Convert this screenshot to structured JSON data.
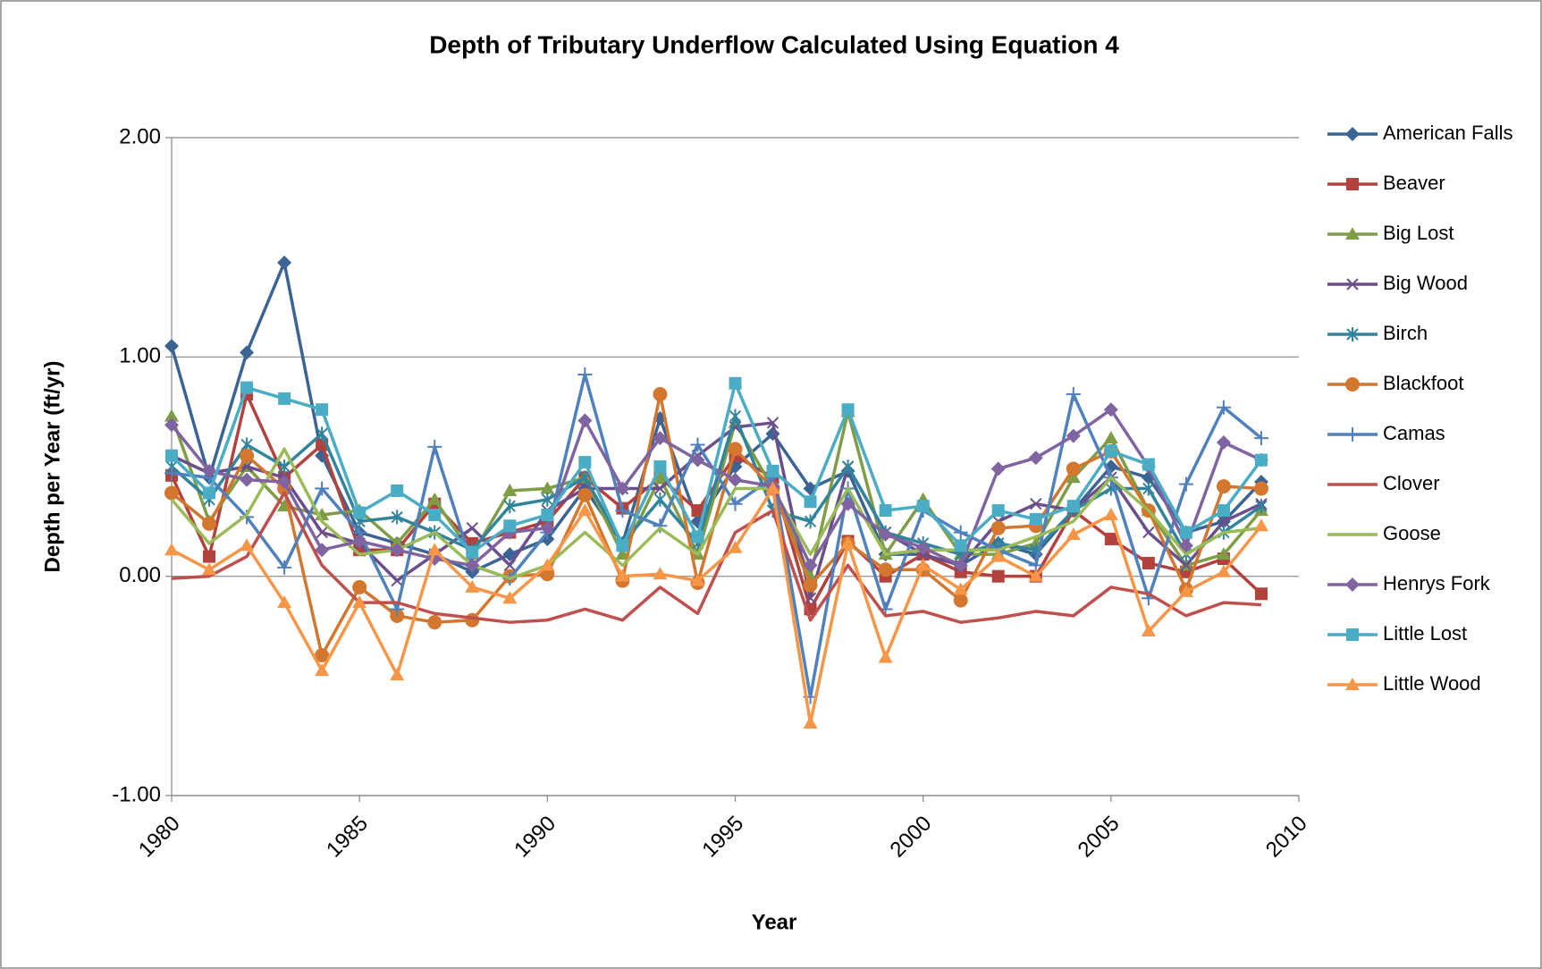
{
  "chart_data": {
    "type": "line",
    "title": "Depth of Tributary Underflow Calculated Using Equation 4",
    "x_label": "Year",
    "y_label": "Depth per Year (ft/yr)",
    "x": [
      1980,
      1981,
      1982,
      1983,
      1984,
      1985,
      1986,
      1987,
      1988,
      1989,
      1990,
      1991,
      1992,
      1993,
      1994,
      1995,
      1996,
      1997,
      1998,
      1999,
      2000,
      2001,
      2002,
      2003,
      2004,
      2005,
      2006,
      2007,
      2008,
      2009
    ],
    "xlim": [
      1980,
      2010
    ],
    "xticks": [
      1980,
      1985,
      1990,
      1995,
      2000,
      2005,
      2010
    ],
    "ylim": [
      -1,
      2
    ],
    "yticks": [
      {
        "value": -1,
        "label": "-1.00"
      },
      {
        "value": 0,
        "label": "0.00"
      },
      {
        "value": 1,
        "label": "1.00"
      },
      {
        "value": 2,
        "label": "2.00"
      }
    ],
    "grid": true,
    "legend": "right",
    "series": [
      {
        "name": "American Falls",
        "color": "#3b6495",
        "marker": "diamond",
        "values": [
          1.05,
          0.45,
          1.02,
          1.43,
          0.55,
          0.2,
          0.15,
          0.1,
          0.02,
          0.1,
          0.17,
          0.4,
          0.15,
          0.72,
          0.25,
          0.5,
          0.65,
          0.4,
          0.48,
          0.1,
          0.1,
          0.05,
          0.15,
          0.1,
          0.3,
          0.5,
          0.45,
          0.2,
          0.25,
          0.43
        ]
      },
      {
        "name": "Beaver",
        "color": "#b3413e",
        "marker": "square",
        "values": [
          0.46,
          0.09,
          0.83,
          0.45,
          0.6,
          0.12,
          0.12,
          0.33,
          0.15,
          0.2,
          0.25,
          0.45,
          0.31,
          0.45,
          0.3,
          0.55,
          0.45,
          -0.15,
          0.16,
          0.0,
          0.1,
          0.02,
          0.0,
          0.0,
          0.3,
          0.17,
          0.06,
          0.02,
          0.08,
          -0.08
        ]
      },
      {
        "name": "Big Lost",
        "color": "#7f9c46",
        "marker": "triangle",
        "values": [
          0.73,
          0.25,
          0.5,
          0.32,
          0.28,
          0.3,
          0.15,
          0.35,
          0.1,
          0.39,
          0.4,
          0.45,
          0.1,
          0.45,
          0.1,
          0.7,
          0.4,
          0.0,
          0.75,
          0.1,
          0.35,
          0.1,
          0.1,
          0.15,
          0.45,
          0.63,
          0.3,
          0.05,
          0.1,
          0.3
        ]
      },
      {
        "name": "Big Wood",
        "color": "#6a4f8b",
        "marker": "x",
        "values": [
          0.55,
          0.47,
          0.5,
          0.45,
          0.2,
          0.15,
          -0.02,
          0.1,
          0.22,
          0.05,
          0.3,
          0.4,
          0.4,
          0.4,
          0.55,
          0.68,
          0.7,
          -0.1,
          0.5,
          0.2,
          0.1,
          0.05,
          0.25,
          0.33,
          0.3,
          0.45,
          0.2,
          0.05,
          0.25,
          0.33
        ]
      },
      {
        "name": "Birch",
        "color": "#31849b",
        "marker": "asterisk",
        "values": [
          0.5,
          0.35,
          0.6,
          0.5,
          0.65,
          0.25,
          0.27,
          0.2,
          0.12,
          0.32,
          0.35,
          0.45,
          0.15,
          0.35,
          0.15,
          0.73,
          0.3,
          0.25,
          0.5,
          0.2,
          0.15,
          0.1,
          0.15,
          0.12,
          0.3,
          0.4,
          0.4,
          0.1,
          0.2,
          0.32
        ]
      },
      {
        "name": "Blackfoot",
        "color": "#d3772f",
        "marker": "circle",
        "values": [
          0.38,
          0.24,
          0.55,
          0.4,
          -0.36,
          -0.05,
          -0.18,
          -0.21,
          -0.2,
          0.0,
          0.01,
          0.37,
          -0.02,
          0.83,
          -0.03,
          0.58,
          0.4,
          -0.04,
          0.15,
          0.03,
          0.03,
          -0.11,
          0.22,
          0.23,
          0.49,
          0.57,
          0.3,
          -0.06,
          0.41,
          0.4
        ]
      },
      {
        "name": "Camas",
        "color": "#4f81bd",
        "marker": "plus",
        "values": [
          0.47,
          0.45,
          0.27,
          0.04,
          0.4,
          0.2,
          -0.15,
          0.59,
          0.05,
          -0.01,
          0.2,
          0.92,
          0.3,
          0.23,
          0.6,
          0.33,
          0.45,
          -0.55,
          0.4,
          -0.15,
          0.3,
          0.2,
          0.12,
          0.05,
          0.83,
          0.45,
          -0.1,
          0.42,
          0.77,
          0.63
        ]
      },
      {
        "name": "Clover",
        "color": "#c0504d",
        "marker": "none",
        "values": [
          -0.01,
          0.0,
          0.09,
          0.38,
          0.05,
          -0.12,
          -0.12,
          -0.17,
          -0.19,
          -0.21,
          -0.2,
          -0.15,
          -0.2,
          -0.05,
          -0.17,
          0.2,
          0.3,
          -0.2,
          0.05,
          -0.18,
          -0.16,
          -0.21,
          -0.19,
          -0.16,
          -0.18,
          -0.05,
          -0.08,
          -0.18,
          -0.12,
          -0.13
        ]
      },
      {
        "name": "Goose",
        "color": "#9bbb59",
        "marker": "none",
        "values": [
          0.35,
          0.15,
          0.28,
          0.58,
          0.25,
          0.1,
          0.12,
          0.2,
          0.05,
          -0.01,
          0.05,
          0.2,
          0.05,
          0.22,
          0.1,
          0.4,
          0.4,
          0.1,
          0.4,
          0.1,
          0.12,
          0.12,
          0.12,
          0.18,
          0.25,
          0.45,
          0.3,
          0.1,
          0.2,
          0.22
        ]
      },
      {
        "name": "Henrys Fork",
        "color": "#8064a2",
        "marker": "diamond",
        "values": [
          0.69,
          0.48,
          0.44,
          0.43,
          0.12,
          0.16,
          0.12,
          0.08,
          0.05,
          0.2,
          0.22,
          0.71,
          0.4,
          0.63,
          0.53,
          0.44,
          0.41,
          0.05,
          0.33,
          0.19,
          0.13,
          0.05,
          0.49,
          0.54,
          0.64,
          0.76,
          0.5,
          0.14,
          0.61,
          0.53
        ]
      },
      {
        "name": "Little Lost",
        "color": "#4bacc6",
        "marker": "square",
        "values": [
          0.55,
          0.38,
          0.86,
          0.81,
          0.76,
          0.29,
          0.39,
          0.28,
          0.11,
          0.23,
          0.28,
          0.52,
          0.14,
          0.5,
          0.18,
          0.88,
          0.48,
          0.34,
          0.76,
          0.3,
          0.32,
          0.14,
          0.3,
          0.26,
          0.32,
          0.57,
          0.51,
          0.2,
          0.3,
          0.53
        ]
      },
      {
        "name": "Little Wood",
        "color": "#f79646",
        "marker": "triangle",
        "values": [
          0.12,
          0.03,
          0.14,
          -0.12,
          -0.43,
          -0.12,
          -0.45,
          0.12,
          -0.05,
          -0.1,
          0.05,
          0.3,
          0.0,
          0.01,
          -0.02,
          0.13,
          0.4,
          -0.67,
          0.15,
          -0.37,
          0.05,
          -0.06,
          0.09,
          0.0,
          0.19,
          0.28,
          -0.25,
          -0.07,
          0.02,
          0.23
        ]
      }
    ]
  }
}
